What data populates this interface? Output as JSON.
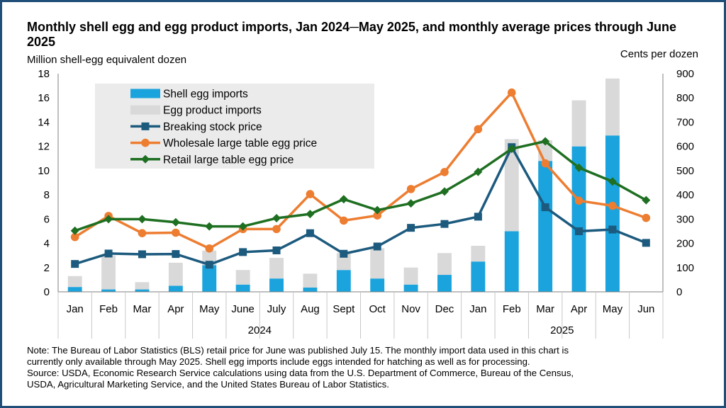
{
  "title": "Monthly shell egg and egg product imports, Jan 2024─May 2025, and monthly average prices through June 2025",
  "left_axis_label": "Million shell-egg equivalent dozen",
  "right_axis_label": "Cents per dozen",
  "note": [
    "Note: The Bureau of Labor Statistics (BLS) retail price for June was published July 15. The monthly import data used in this chart is",
    "currently only available through May 2025. Shell egg imports include eggs intended for hatching as well as for processing.",
    "Source: USDA, Economic Research Service calculations using data from the U.S. Department of Commerce, Bureau of the Census,",
    "USDA, Agricultural Marketing Service, and the United States Bureau of Labor Statistics."
  ],
  "colors": {
    "shell": "#1aa3dc",
    "product": "#d9d9d9",
    "breaking": "#1c5a7e",
    "wholesale": "#ed7d31",
    "retail": "#1e6f21",
    "frame": "#1f4e79",
    "legend_bg": "#ebebeb"
  },
  "chart_data": {
    "type": "bar",
    "categories": [
      "Jan",
      "Feb",
      "Mar",
      "Apr",
      "May",
      "June",
      "July",
      "Aug",
      "Sept",
      "Oct",
      "Nov",
      "Dec",
      "Jan",
      "Feb",
      "Mar",
      "Apr",
      "May",
      "Jun"
    ],
    "year_groups": [
      {
        "label": "2024",
        "start": 0,
        "end": 11
      },
      {
        "label": "2025",
        "start": 12,
        "end": 17
      }
    ],
    "left_axis": {
      "min": 0,
      "max": 18,
      "ticks": [
        "0",
        "2",
        "4",
        "6",
        "8",
        "10",
        "12",
        "14",
        "16",
        "18"
      ]
    },
    "right_axis": {
      "min": 0,
      "max": 900,
      "ticks": [
        "0",
        "100",
        "200",
        "300",
        "400",
        "500",
        "600",
        "700",
        "800",
        "900"
      ]
    },
    "series": [
      {
        "name": "Shell egg imports",
        "kind": "stacked-bar",
        "axis": "left",
        "values": [
          0.4,
          0.2,
          0.2,
          0.5,
          2.2,
          0.6,
          1.1,
          0.35,
          1.8,
          1.1,
          0.6,
          1.4,
          2.5,
          5.0,
          10.8,
          12.0,
          12.9,
          null
        ]
      },
      {
        "name": "Egg product imports",
        "kind": "stacked-bar",
        "axis": "left",
        "values": [
          0.9,
          2.8,
          0.6,
          1.9,
          1.2,
          1.2,
          1.7,
          1.15,
          1.4,
          2.5,
          1.4,
          1.8,
          1.3,
          7.6,
          1.7,
          3.8,
          4.7,
          null
        ]
      },
      {
        "name": "Breaking stock price",
        "kind": "line",
        "axis": "right",
        "values": [
          115,
          158,
          155,
          156,
          112,
          164,
          171,
          242,
          157,
          187,
          264,
          280,
          310,
          597,
          349,
          250,
          257,
          202
        ]
      },
      {
        "name": "Wholesale large table egg price",
        "kind": "line",
        "axis": "right",
        "values": [
          226,
          313,
          242,
          244,
          179,
          259,
          259,
          403,
          294,
          315,
          424,
          494,
          671,
          822,
          530,
          376,
          355,
          305
        ]
      },
      {
        "name": "Retail large table egg price",
        "kind": "line",
        "axis": "right",
        "values": [
          252,
          300,
          300,
          287,
          270,
          270,
          304,
          321,
          382,
          337,
          365,
          414,
          495,
          590,
          621,
          512,
          455,
          378
        ]
      }
    ]
  }
}
